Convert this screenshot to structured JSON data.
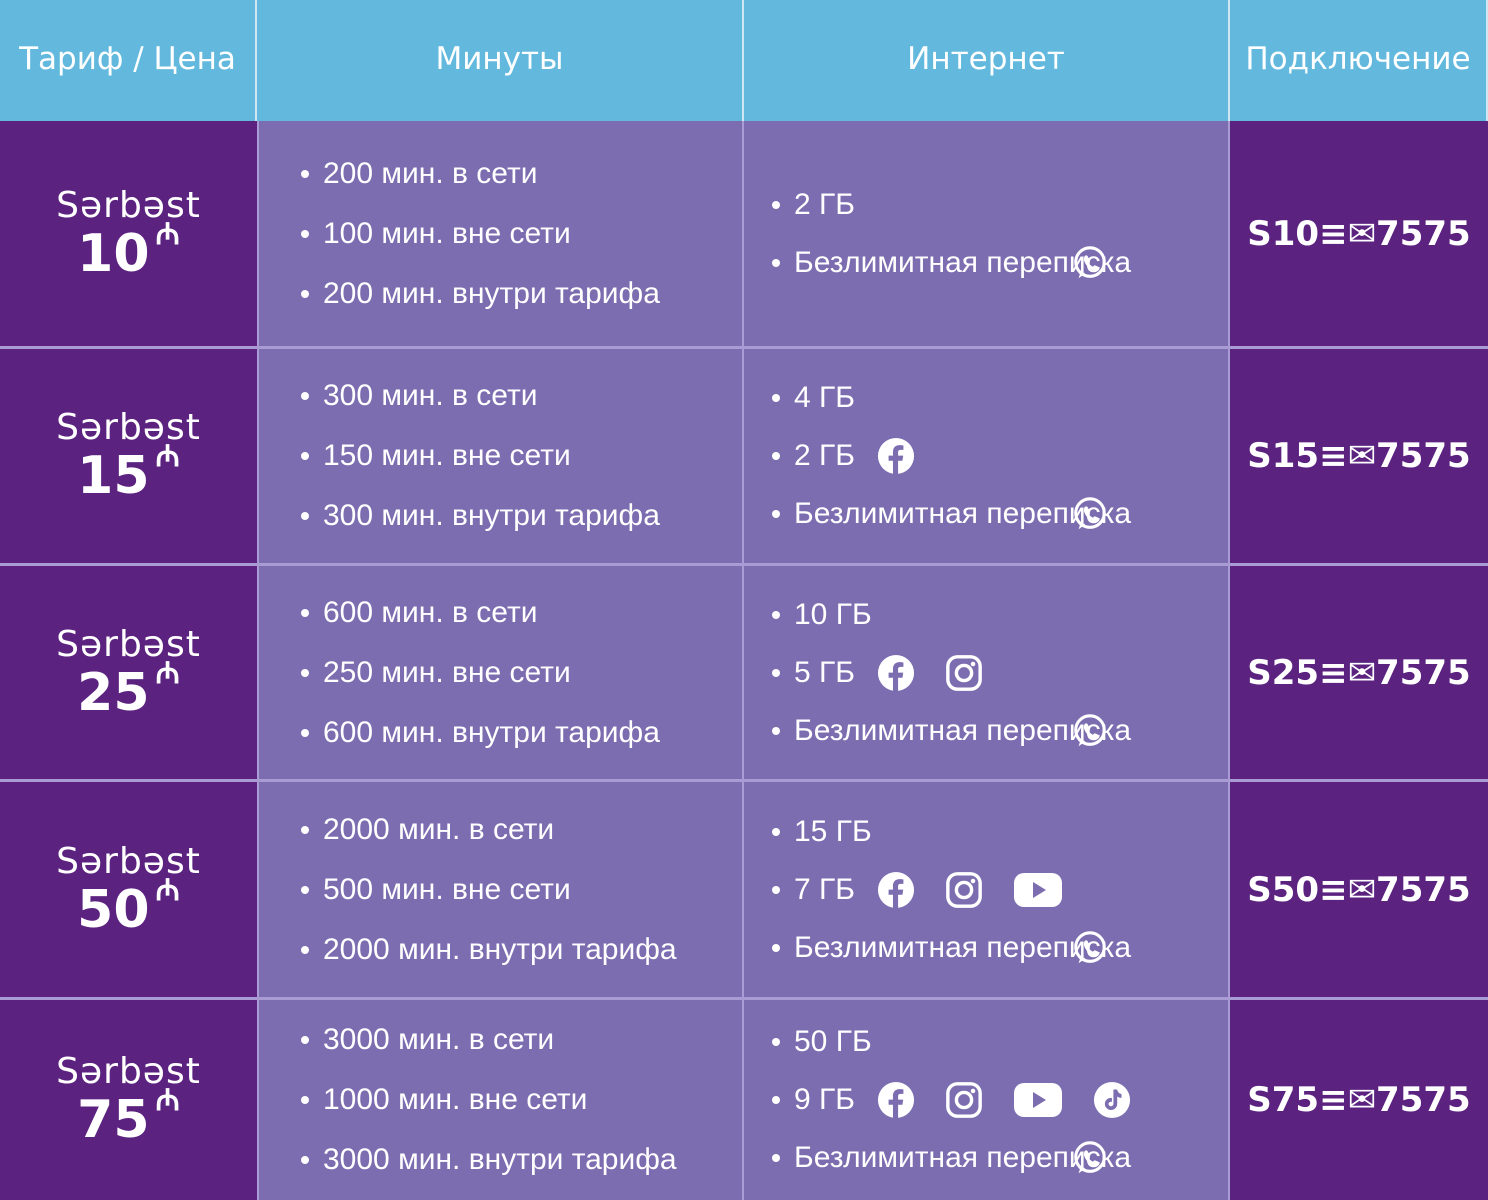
{
  "header": {
    "col1": "Тариф / Цена",
    "col2": "Минуты",
    "col3": "Интернет",
    "col4": "Подключение"
  },
  "colors": {
    "header_bg": "#62b9dd",
    "dark_purple": "#5b2280",
    "light_purple": "#7c6db0"
  },
  "currency_symbol": "₼",
  "rows": [
    {
      "brand": "Sərbəst",
      "price": "10",
      "minutes": [
        "200 мин. в сети",
        "100 мин. вне сети",
        "200 мин. внутри тарифа"
      ],
      "internet": {
        "base": "2 ГБ",
        "social": "",
        "social_icons": [],
        "messaging": "Безлимитная переписка",
        "messaging_icon": "whatsapp-icon"
      },
      "code": "S10≡✉7575"
    },
    {
      "brand": "Sərbəst",
      "price": "15",
      "minutes": [
        "300 мин. в сети",
        "150 мин. вне сети",
        "300 мин. внутри тарифа"
      ],
      "internet": {
        "base": "4 ГБ",
        "social": "2 ГБ",
        "social_icons": [
          "facebook-icon"
        ],
        "messaging": "Безлимитная переписка",
        "messaging_icon": "whatsapp-icon"
      },
      "code": "S15≡✉7575"
    },
    {
      "brand": "Sərbəst",
      "price": "25",
      "minutes": [
        "600 мин. в сети",
        "250 мин. вне сети",
        "600 мин. внутри тарифа"
      ],
      "internet": {
        "base": "10 ГБ",
        "social": "5 ГБ",
        "social_icons": [
          "facebook-icon",
          "instagram-icon"
        ],
        "messaging": "Безлимитная переписка",
        "messaging_icon": "whatsapp-icon"
      },
      "code": "S25≡✉7575"
    },
    {
      "brand": "Sərbəst",
      "price": "50",
      "minutes": [
        "2000 мин. в сети",
        "500 мин. вне сети",
        "2000 мин. внутри тарифа"
      ],
      "internet": {
        "base": "15 ГБ",
        "social": "7 ГБ",
        "social_icons": [
          "facebook-icon",
          "instagram-icon",
          "youtube-icon"
        ],
        "messaging": "Безлимитная переписка",
        "messaging_icon": "whatsapp-icon"
      },
      "code": "S50≡✉7575"
    },
    {
      "brand": "Sərbəst",
      "price": "75",
      "minutes": [
        "3000 мин. в сети",
        "1000 мин. вне сети",
        "3000 мин. внутри тарифа"
      ],
      "internet": {
        "base": "50 ГБ",
        "social": "9 ГБ",
        "social_icons": [
          "facebook-icon",
          "instagram-icon",
          "youtube-icon",
          "tiktok-icon"
        ],
        "messaging": "Безлимитная переписка",
        "messaging_icon": "whatsapp-icon"
      },
      "code": "S75≡✉7575"
    }
  ]
}
